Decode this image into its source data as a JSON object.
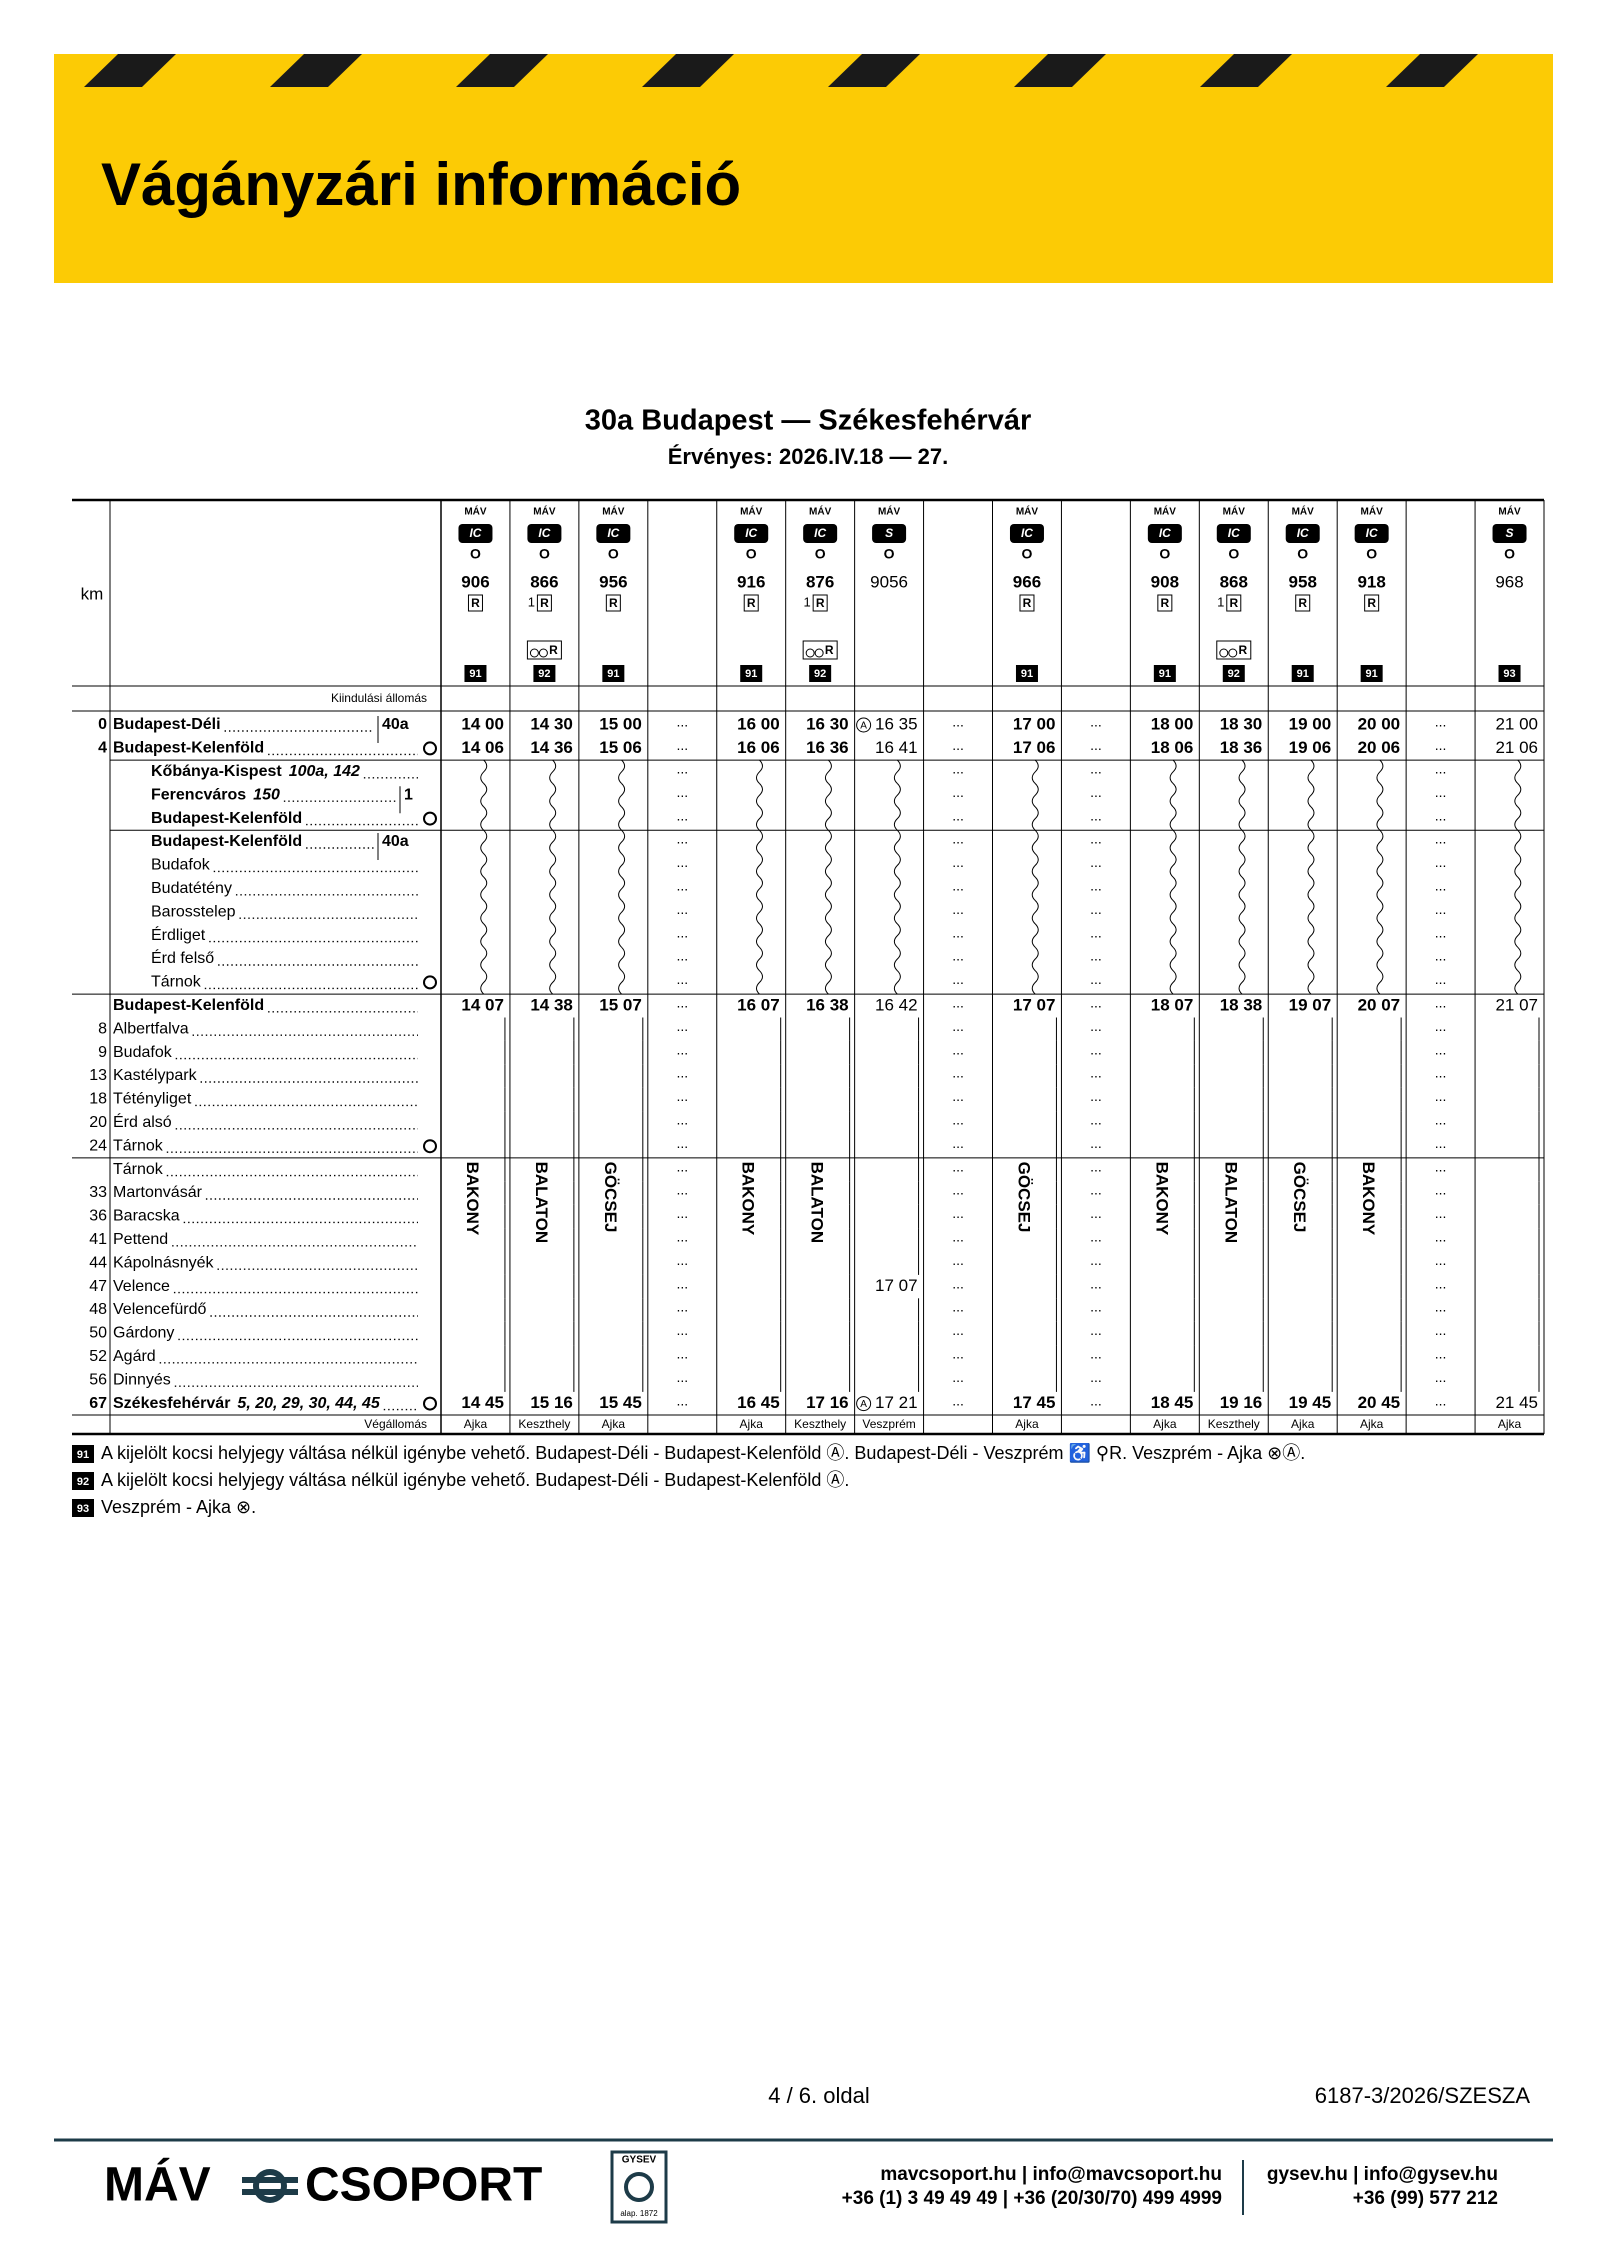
{
  "header": {
    "title": "Vágányzári információ"
  },
  "timetable": {
    "title": "30a Budapest — Székesfehérvár",
    "validity": "Érvényes: 2026.IV.18 — 27."
  },
  "table": {
    "km_label": "km",
    "origin_label": "Kiindulási állomás",
    "destination_label": "Végállomás",
    "no_stop": "...",
    "operator": "MÁV",
    "stop_mark": "O",
    "reservation": "R",
    "connection_mark": "A",
    "columns": [
      {
        "category": "IC",
        "number": "906",
        "first_class": null,
        "bike": false,
        "note": "91",
        "name": "BAKONY",
        "destination": "Ajka"
      },
      {
        "category": "IC",
        "number": "866",
        "first_class": "1",
        "bike": true,
        "note": "92",
        "name": "BALATON",
        "destination": "Keszthely"
      },
      {
        "category": "IC",
        "number": "956",
        "first_class": null,
        "bike": false,
        "note": "91",
        "name": "GÖCSEJ",
        "destination": "Ajka"
      },
      null,
      {
        "category": "IC",
        "number": "916",
        "first_class": null,
        "bike": false,
        "note": "91",
        "name": "BAKONY",
        "destination": "Ajka"
      },
      {
        "category": "IC",
        "number": "876",
        "first_class": "1",
        "bike": true,
        "note": "92",
        "name": "BALATON",
        "destination": "Keszthely"
      },
      {
        "category": "S",
        "number": "9056",
        "first_class": null,
        "bike": false,
        "note": null,
        "name": null,
        "destination": "Veszprém"
      },
      null,
      {
        "category": "IC",
        "number": "966",
        "first_class": null,
        "bike": false,
        "note": "91",
        "name": "GÖCSEJ",
        "destination": "Ajka"
      },
      null,
      {
        "category": "IC",
        "number": "908",
        "first_class": null,
        "bike": false,
        "note": "91",
        "name": "BAKONY",
        "destination": "Ajka"
      },
      {
        "category": "IC",
        "number": "868",
        "first_class": "1",
        "bike": true,
        "note": "92",
        "name": "BALATON",
        "destination": "Keszthely"
      },
      {
        "category": "IC",
        "number": "958",
        "first_class": null,
        "bike": false,
        "note": "91",
        "name": "GÖCSEJ",
        "destination": "Ajka"
      },
      {
        "category": "IC",
        "number": "918",
        "first_class": null,
        "bike": false,
        "note": "91",
        "name": "BAKONY",
        "destination": "Ajka"
      },
      null,
      {
        "category": "S",
        "number": "968",
        "first_class": null,
        "bike": false,
        "note": "93",
        "name": null,
        "destination": "Ajka"
      }
    ],
    "rows": [
      {
        "km": "0",
        "station": "Budapest-Déli",
        "bold": true,
        "ref": "40a",
        "connection_train": "876",
        "times": [
          "14 00",
          "14 30",
          "15 00",
          null,
          "16 00",
          "16 30",
          "16 35",
          null,
          "17 00",
          null,
          "18 00",
          "18 30",
          "19 00",
          "20 00",
          null,
          "21 00"
        ]
      },
      {
        "km": "4",
        "station": "Budapest-Kelenföld",
        "bold": true,
        "circle": true,
        "times": [
          "14 06",
          "14 36",
          "15 06",
          null,
          "16 06",
          "16 36",
          "16 41",
          null,
          "17 06",
          null,
          "18 06",
          "18 36",
          "19 06",
          "20 06",
          null,
          "21 06"
        ]
      },
      {
        "station": "Kőbánya-Kispest",
        "lines": "100a, 142",
        "bold": true,
        "indent": true,
        "section_start": true
      },
      {
        "station": "Ferencváros",
        "lines": "150",
        "ref": "1",
        "bold": true,
        "indent": true
      },
      {
        "station": "Budapest-Kelenföld",
        "bold": true,
        "indent": true,
        "circle": true
      },
      {
        "station": "Budapest-Kelenföld",
        "ref": "40a",
        "bold": true,
        "indent": true,
        "section_start": true
      },
      {
        "station": "Budafok",
        "indent": true
      },
      {
        "station": "Budatétény",
        "indent": true
      },
      {
        "station": "Barosstelep",
        "indent": true
      },
      {
        "station": "Érdliget",
        "indent": true
      },
      {
        "station": "Érd felső",
        "indent": true
      },
      {
        "station": "Tárnok",
        "indent": true,
        "circle": true
      },
      {
        "station": "Budapest-Kelenföld",
        "bold": true,
        "section_start": true,
        "times": [
          "14 07",
          "14 38",
          "15 07",
          null,
          "16 07",
          "16 38",
          "16 42",
          null,
          "17 07",
          null,
          "18 07",
          "18 38",
          "19 07",
          "20 07",
          null,
          "21 07"
        ]
      },
      {
        "km": "8",
        "station": "Albertfalva"
      },
      {
        "km": "9",
        "station": "Budafok"
      },
      {
        "km": "13",
        "station": "Kastélypark"
      },
      {
        "km": "18",
        "station": "Tétényliget"
      },
      {
        "km": "20",
        "station": "Érd alsó"
      },
      {
        "km": "24",
        "station": "Tárnok",
        "circle": true
      },
      {
        "station": "Tárnok",
        "section_start": true,
        "names_start": true
      },
      {
        "km": "33",
        "station": "Martonvásár"
      },
      {
        "km": "36",
        "station": "Baracska"
      },
      {
        "km": "41",
        "station": "Pettend"
      },
      {
        "km": "44",
        "station": "Kápolnásnyék"
      },
      {
        "km": "47",
        "station": "Velence",
        "times": [
          null,
          null,
          null,
          null,
          null,
          null,
          "17 07",
          null,
          null,
          null,
          null,
          null,
          null,
          null,
          null,
          null
        ]
      },
      {
        "km": "48",
        "station": "Velencefürdő"
      },
      {
        "km": "50",
        "station": "Gárdony"
      },
      {
        "km": "52",
        "station": "Agárd"
      },
      {
        "km": "56",
        "station": "Dinnyés"
      },
      {
        "km": "67",
        "station": "Székesfehérvár",
        "lines": "5, 20, 29, 30, 44, 45",
        "bold": true,
        "circle": true,
        "connection_train": "876",
        "times": [
          "14 45",
          "15 16",
          "15 45",
          null,
          "16 45",
          "17 16",
          "17 21",
          null,
          "17 45",
          null,
          "18 45",
          "19 16",
          "19 45",
          "20 45",
          null,
          "21 45"
        ]
      }
    ]
  },
  "footnotes": [
    {
      "number": "91",
      "text": "A kijelölt kocsi helyjegy váltása nélkül igénybe vehető. Budapest-Déli - Budapest-Kelenföld Ⓐ. Budapest-Déli - Veszprém ♿ ⚲R. Veszprém - Ajka ⊗Ⓐ."
    },
    {
      "number": "92",
      "text": "A kijelölt kocsi helyjegy váltása nélkül igénybe vehető. Budapest-Déli - Budapest-Kelenföld Ⓐ."
    },
    {
      "number": "93",
      "text": "Veszprém - Ajka ⊗."
    }
  ],
  "footer": {
    "page": "4 / 6. oldal",
    "doc_id": "6187-3/2026/SZESZA",
    "brand_left": "MÁV",
    "brand_right": "CSOPORT",
    "gysev": "GYSEV",
    "gysev_since": "alap. 1872",
    "mav_web": "mavcsoport.hu | info@mavcsoport.hu",
    "mav_phone": "+36 (1) 3 49 49 49 | +36 (20/30/70) 499 4999",
    "gysev_web": "gysev.hu | info@gysev.hu",
    "gysev_phone": "+36 (99) 577 212"
  }
}
